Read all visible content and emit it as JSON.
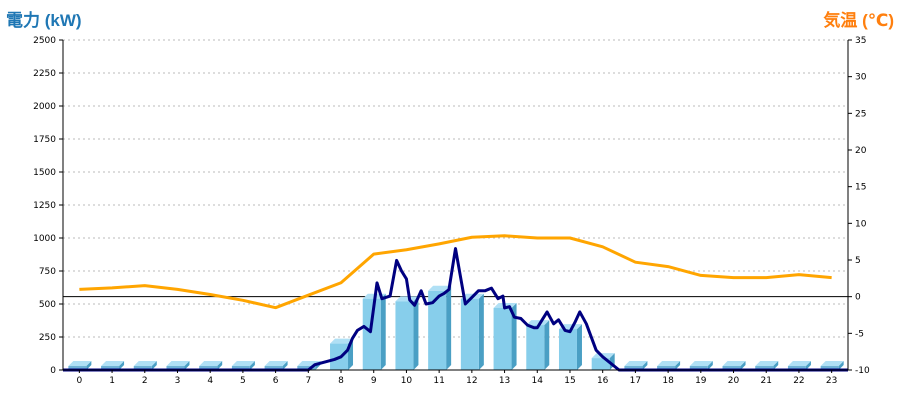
{
  "chart_data": {
    "type": "bar",
    "left_axis": {
      "label": "電力 (kW)",
      "min": 0,
      "max": 2500,
      "ticks": [
        0,
        250,
        500,
        750,
        1000,
        1250,
        1500,
        1750,
        2000,
        2250,
        2500
      ]
    },
    "right_axis": {
      "label": "気温 (℃)",
      "min": -10,
      "max": 35,
      "ticks": [
        -10,
        -5,
        0,
        5,
        10,
        15,
        20,
        25,
        30,
        35
      ]
    },
    "categories": [
      "0",
      "1",
      "2",
      "3",
      "4",
      "5",
      "6",
      "7",
      "8",
      "9",
      "10",
      "11",
      "12",
      "13",
      "14",
      "15",
      "16",
      "17",
      "18",
      "19",
      "20",
      "21",
      "22",
      "23"
    ],
    "bars": {
      "axis": "left",
      "color": "#87ceeb",
      "values": [
        0,
        0,
        0,
        0,
        0,
        0,
        0,
        0,
        200,
        540,
        520,
        600,
        540,
        470,
        340,
        310,
        90,
        0,
        0,
        0,
        0,
        0,
        0,
        0
      ]
    },
    "power_line": {
      "axis": "left",
      "color": "#000080",
      "x": [
        6,
        6.5,
        6.8,
        7,
        7.2,
        7.5,
        7.8,
        8,
        8.2,
        8.35,
        8.5,
        8.7,
        8.9,
        9.1,
        9.25,
        9.5,
        9.7,
        9.85,
        10,
        10.1,
        10.25,
        10.45,
        10.6,
        10.8,
        11,
        11.15,
        11.3,
        11.5,
        11.7,
        11.8,
        12,
        12.2,
        12.4,
        12.6,
        12.8,
        12.95,
        13,
        13.15,
        13.3,
        13.5,
        13.7,
        13.9,
        14,
        14.15,
        14.3,
        14.5,
        14.65,
        14.85,
        15,
        15.15,
        15.3,
        15.5,
        15.8,
        16,
        16.5
      ],
      "values": [
        0,
        0,
        0,
        0,
        40,
        60,
        80,
        100,
        150,
        240,
        300,
        330,
        290,
        660,
        540,
        560,
        830,
        750,
        690,
        530,
        490,
        600,
        500,
        510,
        560,
        580,
        610,
        920,
        640,
        500,
        550,
        600,
        600,
        620,
        540,
        560,
        470,
        480,
        400,
        390,
        340,
        320,
        320,
        380,
        440,
        350,
        380,
        300,
        290,
        360,
        440,
        350,
        150,
        100,
        0
      ]
    },
    "temperature_line": {
      "axis": "right",
      "color": "#ffa500",
      "x": [
        0,
        1,
        2,
        3,
        4,
        5,
        6,
        7,
        8,
        9,
        10,
        11,
        12,
        13,
        14,
        15,
        16,
        17,
        18,
        19,
        20,
        21,
        22,
        23
      ],
      "values": [
        1,
        1.2,
        1.5,
        1,
        0.3,
        -0.5,
        -1.5,
        0.2,
        1.9,
        5.8,
        6.4,
        7.2,
        8.1,
        8.3,
        8,
        8,
        6.8,
        4.7,
        4.1,
        2.9,
        2.6,
        2.6,
        3,
        2.6
      ]
    }
  }
}
